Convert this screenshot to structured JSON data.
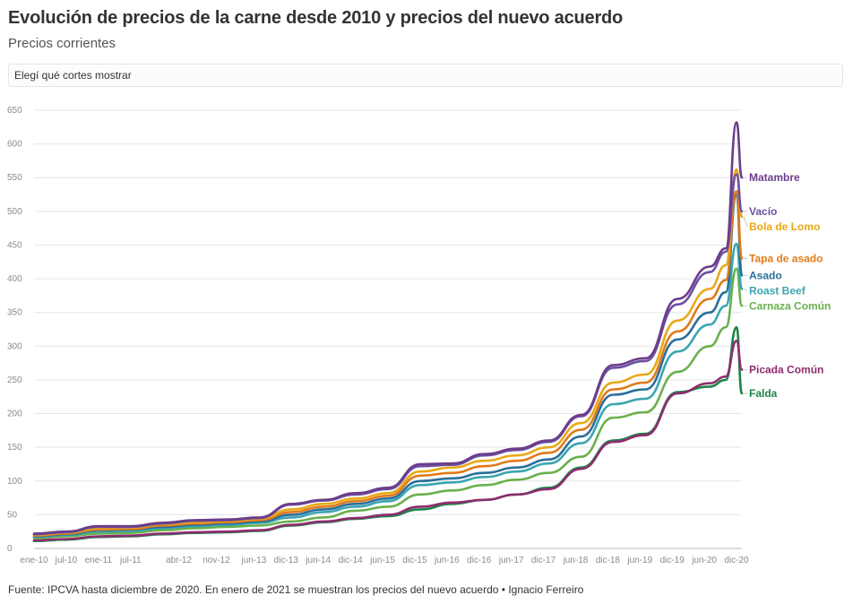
{
  "header": {
    "title": "Evolución de precios de la carne desde 2010 y precios del nuevo acuerdo",
    "subtitle": "Precios corrientes"
  },
  "selector": {
    "label": "Elegí qué cortes mostrar"
  },
  "footer": {
    "source": "Fuente: IPCVA hasta diciembre de 2020. En enero de 2021 se muestran los precios del nuevo acuerdo • Ignacio Ferreiro"
  },
  "chart_data": {
    "type": "line",
    "title": "Evolución de precios de la carne desde 2010 y precios del nuevo acuerdo",
    "subtitle": "Precios corrientes",
    "xlabel": "",
    "ylabel": "",
    "ylim": [
      0,
      650
    ],
    "y_ticks": [
      0,
      50,
      100,
      150,
      200,
      250,
      300,
      350,
      400,
      450,
      500,
      550,
      600,
      650
    ],
    "x_tick_labels": [
      "ene-10",
      "jul-10",
      "ene-11",
      "jul-11",
      "abr-12",
      "nov-12",
      "jun-13",
      "dic-13",
      "jun-14",
      "dic-14",
      "jun-15",
      "dic-15",
      "jun-16",
      "dic-16",
      "jun-17",
      "dic-17",
      "jun-18",
      "dic-18",
      "jun-19",
      "dic-19",
      "jun-20",
      "dic-20"
    ],
    "grid": true,
    "legend": "direct labels at right end of lines",
    "x": [
      "ene-10",
      "jul-10",
      "ene-11",
      "jul-11",
      "ene-12",
      "jul-12",
      "ene-13",
      "jul-13",
      "ene-14",
      "jul-14",
      "ene-15",
      "jul-15",
      "ene-16",
      "jul-16",
      "ene-17",
      "jul-17",
      "ene-18",
      "jul-18",
      "ene-19",
      "jul-19",
      "ene-20",
      "jul-20",
      "oct-20",
      "dic-20",
      "ene-21"
    ],
    "series": [
      {
        "name": "Matambre",
        "color": "#6b3d8a",
        "values": [
          22,
          25,
          33,
          33,
          38,
          42,
          43,
          46,
          66,
          72,
          82,
          90,
          125,
          126,
          140,
          148,
          160,
          198,
          272,
          282,
          370,
          418,
          445,
          632,
          550
        ]
      },
      {
        "name": "Vacío",
        "color": "#6b4fa3",
        "values": [
          21,
          24,
          32,
          32,
          37,
          41,
          42,
          45,
          65,
          71,
          80,
          88,
          122,
          124,
          138,
          146,
          158,
          196,
          268,
          278,
          362,
          410,
          440,
          555,
          500
        ]
      },
      {
        "name": "Bola de Lomo",
        "color": "#e8a917",
        "values": [
          20,
          23,
          30,
          31,
          36,
          39,
          41,
          44,
          58,
          66,
          74,
          82,
          114,
          120,
          130,
          138,
          150,
          186,
          246,
          258,
          338,
          385,
          420,
          562,
          492
        ]
      },
      {
        "name": "Tapa de asado",
        "color": "#e07b1a",
        "values": [
          19,
          22,
          28,
          29,
          34,
          37,
          39,
          42,
          54,
          62,
          70,
          78,
          108,
          112,
          122,
          130,
          142,
          176,
          236,
          246,
          322,
          370,
          398,
          530,
          430
        ]
      },
      {
        "name": "Asado",
        "color": "#2a6f9c",
        "values": [
          18,
          21,
          27,
          28,
          32,
          35,
          37,
          40,
          50,
          58,
          66,
          74,
          100,
          104,
          112,
          120,
          132,
          166,
          228,
          236,
          310,
          350,
          380,
          525,
          405
        ]
      },
      {
        "name": "Roast Beef",
        "color": "#3aa6b0",
        "values": [
          17,
          20,
          25,
          26,
          30,
          33,
          35,
          38,
          46,
          54,
          62,
          70,
          94,
          98,
          106,
          114,
          126,
          156,
          214,
          222,
          292,
          332,
          360,
          452,
          385
        ]
      },
      {
        "name": "Carnaza Común",
        "color": "#6ab04c",
        "values": [
          15,
          18,
          22,
          23,
          27,
          30,
          32,
          34,
          40,
          46,
          56,
          62,
          80,
          86,
          94,
          102,
          112,
          136,
          194,
          202,
          262,
          300,
          328,
          415,
          360
        ]
      },
      {
        "name": "Picada Común",
        "color": "#8e2c6e",
        "values": [
          12,
          14,
          18,
          19,
          22,
          24,
          25,
          27,
          35,
          40,
          45,
          50,
          62,
          68,
          72,
          80,
          88,
          118,
          158,
          168,
          230,
          245,
          255,
          308,
          265
        ]
      },
      {
        "name": "Falda",
        "color": "#1e8449",
        "values": [
          11,
          13,
          17,
          18,
          21,
          23,
          24,
          26,
          34,
          39,
          44,
          48,
          58,
          66,
          72,
          80,
          90,
          120,
          160,
          170,
          232,
          240,
          250,
          328,
          230
        ]
      }
    ]
  }
}
